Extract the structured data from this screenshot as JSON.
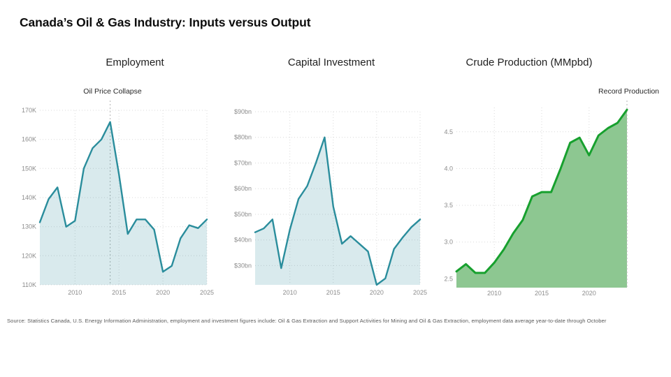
{
  "header": {
    "title": "Canada’s Oil & Gas Industry: Inputs versus Output"
  },
  "footer": {
    "source": "Source: Statistics Canada, U.S. Energy Information Administration, employment and investment figures include: Oil & Gas Extraction and Support Activities for Mining and Oil & Gas Extraction, employment data average year-to-date through October"
  },
  "colors": {
    "background": "#ffffff",
    "grid": "#d9d9d9",
    "tick": "#8c8c8c",
    "annotation_line": "#b3b3b3",
    "teal_line": "#2a8d9c",
    "teal_fill": "rgba(42,141,156,0.18)",
    "green_line": "#17a02e",
    "green_fill": "#8dc791"
  },
  "chart_data": [
    {
      "type": "area",
      "title": "Employment",
      "x": [
        2006,
        2007,
        2008,
        2009,
        2010,
        2011,
        2012,
        2013,
        2014,
        2015,
        2016,
        2017,
        2018,
        2019,
        2020,
        2021,
        2022,
        2023,
        2024,
        2025
      ],
      "values": [
        131.5,
        139.5,
        143.5,
        130,
        132,
        150,
        157,
        160,
        166,
        148,
        127.5,
        132.5,
        132.5,
        129,
        114.5,
        116.5,
        126,
        130.5,
        129.5,
        132.5
      ],
      "unit": "K",
      "xlim": [
        2006,
        2025
      ],
      "ylim": [
        110,
        170
      ],
      "x_ticks": [
        2010,
        2015,
        2020,
        2025
      ],
      "y_ticks": {
        "values": [
          110,
          120,
          130,
          140,
          150,
          160,
          170
        ],
        "labels": [
          "110K",
          "120K",
          "130K",
          "140K",
          "150K",
          "160K",
          "170K"
        ]
      },
      "grid": "dotted",
      "legend": "none",
      "annotation": {
        "label": "Oil Price Collapse",
        "x": 2014
      },
      "line_color": "#2a8d9c",
      "fill_color": "rgba(42,141,156,0.18)"
    },
    {
      "type": "area",
      "title": "Capital Investment",
      "x": [
        2006,
        2007,
        2008,
        2009,
        2010,
        2011,
        2012,
        2013,
        2014,
        2015,
        2016,
        2017,
        2018,
        2019,
        2020,
        2021,
        2022,
        2023,
        2024,
        2025
      ],
      "values": [
        43,
        44.5,
        48,
        29,
        44,
        56,
        61,
        70,
        80,
        53,
        38.5,
        41.5,
        38.5,
        35.5,
        22.5,
        25,
        36.5,
        41,
        45,
        48
      ],
      "unit": "$bn",
      "xlim": [
        2006,
        2025
      ],
      "ylim": [
        22.5,
        90
      ],
      "x_ticks": [
        2010,
        2015,
        2020,
        2025
      ],
      "y_ticks": {
        "values": [
          30,
          40,
          50,
          60,
          70,
          80,
          90
        ],
        "labels": [
          "$30bn",
          "$40bn",
          "$50bn",
          "$60bn",
          "$70bn",
          "$80bn",
          "$90bn"
        ]
      },
      "grid": "dotted",
      "legend": "none",
      "annotation": null,
      "line_color": "#2a8d9c",
      "fill_color": "rgba(42,141,156,0.18)"
    },
    {
      "type": "area",
      "title": "Crude Production (MMpbd)",
      "x": [
        2006,
        2007,
        2008,
        2009,
        2010,
        2011,
        2012,
        2013,
        2014,
        2015,
        2016,
        2017,
        2018,
        2019,
        2020,
        2021,
        2022,
        2023,
        2024
      ],
      "values": [
        2.6,
        2.7,
        2.58,
        2.58,
        2.72,
        2.9,
        3.12,
        3.3,
        3.62,
        3.68,
        3.68,
        4.0,
        4.35,
        4.42,
        4.18,
        4.45,
        4.55,
        4.62,
        4.8
      ],
      "unit": "MMpbd",
      "xlim": [
        2006,
        2024
      ],
      "ylim": [
        2.38,
        4.83
      ],
      "x_ticks": [
        2010,
        2015,
        2020
      ],
      "y_ticks": {
        "values": [
          2.5,
          3.0,
          3.5,
          4.0,
          4.5
        ],
        "labels": [
          "2.5",
          "3.0",
          "3.5",
          "4.0",
          "4.5"
        ]
      },
      "grid": "dotted",
      "legend": "none",
      "annotation": {
        "label": "Record Production",
        "x": 2024
      },
      "line_color": "#17a02e",
      "fill_color": "#8dc791"
    }
  ]
}
